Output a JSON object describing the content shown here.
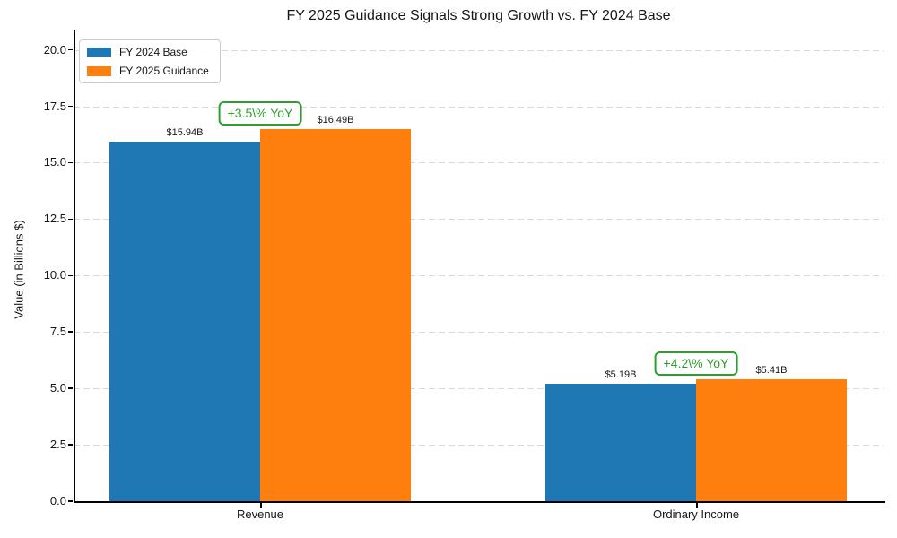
{
  "chart_data": {
    "type": "bar",
    "title": "FY 2025 Guidance Signals Strong Growth vs. FY 2024 Base",
    "ylabel": "Value (in Billions $)",
    "xlabel": "",
    "categories": [
      "Revenue",
      "Ordinary Income"
    ],
    "series": [
      {
        "name": "FY 2024 Base",
        "color": "#1f77b4",
        "values": [
          15.94,
          5.19
        ],
        "labels": [
          "$15.94B",
          "$5.19B"
        ]
      },
      {
        "name": "FY 2025 Guidance",
        "color": "#ff7f0e",
        "values": [
          16.49,
          5.41
        ],
        "labels": [
          "$16.49B",
          "$5.41B"
        ]
      }
    ],
    "annotations": [
      {
        "text": "+3.5\\% YoY",
        "group": 0
      },
      {
        "text": "+4.2\\% YoY",
        "group": 1
      }
    ],
    "annotation_color": "#2ca02c",
    "ytick_labels": [
      "0.0",
      "2.5",
      "5.0",
      "7.5",
      "10.0",
      "12.5",
      "15.0",
      "17.5",
      "20.0"
    ],
    "ylim": [
      0,
      20.9
    ],
    "grid": "horizontal-dashed",
    "legend_position": "upper-left",
    "bar_color_blue": "#1f77b4",
    "bar_color_orange": "#ff7f0e"
  }
}
